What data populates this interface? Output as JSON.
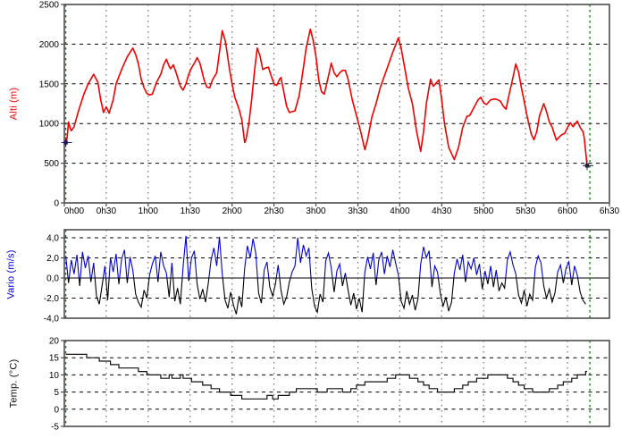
{
  "panel_background": "#ffffff",
  "colors": {
    "altitude_line": "#f20000",
    "vario_positive": "#0000cd",
    "vario_negative": "#000000",
    "temperature_line": "#111111",
    "event_line_green": "#008000",
    "plot_border": "#4d4d4d",
    "grid_horizontal": "#000000",
    "grid_vertical": "#6e6e6e",
    "tick_text": "#000000",
    "marker": "#1a1a6e"
  },
  "x_axis": {
    "labels": [
      "0h00",
      "0h30",
      "1h00",
      "1h30",
      "2h00",
      "2h30",
      "3h00",
      "3h30",
      "4h00",
      "4h30",
      "5h00",
      "5h30",
      "6h00",
      "6h30"
    ],
    "interval_min": 30
  },
  "events": {
    "event_lines_min": [
      1,
      376
    ],
    "meaning": [
      "takeoff",
      "landing"
    ]
  },
  "chart_data": [
    {
      "type": "line",
      "name": "altitude",
      "ylabel": "Alti (m)",
      "color": "#f20000",
      "ylim": [
        0,
        2500
      ],
      "yticks": [
        {
          "v": 2500,
          "label": "2500"
        },
        {
          "v": 2000,
          "label": "2000"
        },
        {
          "v": 1500,
          "label": "1500"
        },
        {
          "v": 1000,
          "label": "1000"
        },
        {
          "v": 500,
          "label": "500"
        },
        {
          "v": 0,
          "label": "0"
        }
      ],
      "x_unit": "minutes_since_takeoff",
      "points": [
        [
          0,
          760
        ],
        [
          1,
          820
        ],
        [
          2,
          1020
        ],
        [
          3,
          950
        ],
        [
          4,
          910
        ],
        [
          6,
          960
        ],
        [
          9,
          1150
        ],
        [
          13,
          1370
        ],
        [
          16,
          1500
        ],
        [
          20,
          1620
        ],
        [
          23,
          1520
        ],
        [
          25,
          1300
        ],
        [
          27,
          1140
        ],
        [
          29,
          1210
        ],
        [
          31,
          1130
        ],
        [
          34,
          1300
        ],
        [
          36,
          1500
        ],
        [
          40,
          1680
        ],
        [
          44,
          1840
        ],
        [
          48,
          1950
        ],
        [
          50,
          1870
        ],
        [
          52,
          1750
        ],
        [
          54,
          1560
        ],
        [
          56,
          1450
        ],
        [
          58,
          1380
        ],
        [
          60,
          1360
        ],
        [
          62,
          1370
        ],
        [
          65,
          1520
        ],
        [
          68,
          1620
        ],
        [
          70,
          1740
        ],
        [
          72,
          1810
        ],
        [
          74,
          1720
        ],
        [
          75,
          1690
        ],
        [
          77,
          1740
        ],
        [
          79,
          1640
        ],
        [
          82,
          1470
        ],
        [
          84,
          1420
        ],
        [
          86,
          1500
        ],
        [
          88,
          1620
        ],
        [
          90,
          1700
        ],
        [
          92,
          1760
        ],
        [
          94,
          1830
        ],
        [
          96,
          1760
        ],
        [
          97,
          1690
        ],
        [
          99,
          1550
        ],
        [
          101,
          1460
        ],
        [
          103,
          1450
        ],
        [
          105,
          1550
        ],
        [
          108,
          1640
        ],
        [
          110,
          1900
        ],
        [
          112,
          2170
        ],
        [
          114,
          2050
        ],
        [
          115,
          1950
        ],
        [
          117,
          1700
        ],
        [
          119,
          1500
        ],
        [
          121,
          1330
        ],
        [
          124,
          1180
        ],
        [
          126,
          1050
        ],
        [
          128,
          760
        ],
        [
          129,
          800
        ],
        [
          131,
          1000
        ],
        [
          133,
          1300
        ],
        [
          135,
          1650
        ],
        [
          137,
          1950
        ],
        [
          139,
          1850
        ],
        [
          141,
          1680
        ],
        [
          143,
          1700
        ],
        [
          145,
          1710
        ],
        [
          147,
          1600
        ],
        [
          149,
          1500
        ],
        [
          151,
          1480
        ],
        [
          153,
          1560
        ],
        [
          154,
          1580
        ],
        [
          156,
          1400
        ],
        [
          158,
          1220
        ],
        [
          160,
          1140
        ],
        [
          162,
          1150
        ],
        [
          164,
          1160
        ],
        [
          167,
          1350
        ],
        [
          170,
          1700
        ],
        [
          172,
          1950
        ],
        [
          175,
          2190
        ],
        [
          177,
          2050
        ],
        [
          179,
          1850
        ],
        [
          181,
          1550
        ],
        [
          183,
          1400
        ],
        [
          185,
          1370
        ],
        [
          188,
          1600
        ],
        [
          190,
          1760
        ],
        [
          192,
          1640
        ],
        [
          194,
          1590
        ],
        [
          196,
          1640
        ],
        [
          198,
          1670
        ],
        [
          200,
          1670
        ],
        [
          202,
          1560
        ],
        [
          205,
          1300
        ],
        [
          208,
          1100
        ],
        [
          211,
          900
        ],
        [
          214,
          670
        ],
        [
          216,
          800
        ],
        [
          219,
          1080
        ],
        [
          222,
          1250
        ],
        [
          225,
          1450
        ],
        [
          228,
          1600
        ],
        [
          231,
          1750
        ],
        [
          234,
          1900
        ],
        [
          238,
          2080
        ],
        [
          240,
          1950
        ],
        [
          242,
          1750
        ],
        [
          245,
          1450
        ],
        [
          248,
          1250
        ],
        [
          251,
          900
        ],
        [
          254,
          650
        ],
        [
          256,
          900
        ],
        [
          258,
          1250
        ],
        [
          261,
          1560
        ],
        [
          263,
          1470
        ],
        [
          265,
          1510
        ],
        [
          267,
          1550
        ],
        [
          269,
          1300
        ],
        [
          271,
          1000
        ],
        [
          274,
          700
        ],
        [
          278,
          545
        ],
        [
          281,
          700
        ],
        [
          284,
          950
        ],
        [
          287,
          1090
        ],
        [
          289,
          1100
        ],
        [
          292,
          1200
        ],
        [
          295,
          1300
        ],
        [
          297,
          1330
        ],
        [
          299,
          1260
        ],
        [
          301,
          1240
        ],
        [
          304,
          1300
        ],
        [
          307,
          1310
        ],
        [
          309,
          1300
        ],
        [
          311,
          1280
        ],
        [
          313,
          1220
        ],
        [
          315,
          1180
        ],
        [
          317,
          1350
        ],
        [
          319,
          1500
        ],
        [
          322,
          1750
        ],
        [
          324,
          1650
        ],
        [
          326,
          1450
        ],
        [
          328,
          1280
        ],
        [
          330,
          1100
        ],
        [
          333,
          870
        ],
        [
          335,
          795
        ],
        [
          337,
          900
        ],
        [
          339,
          1100
        ],
        [
          342,
          1250
        ],
        [
          344,
          1150
        ],
        [
          346,
          1020
        ],
        [
          348,
          955
        ],
        [
          351,
          790
        ],
        [
          353,
          830
        ],
        [
          355,
          860
        ],
        [
          357,
          875
        ],
        [
          359,
          950
        ],
        [
          361,
          1010
        ],
        [
          363,
          960
        ],
        [
          366,
          1030
        ],
        [
          368,
          950
        ],
        [
          370,
          900
        ],
        [
          371,
          820
        ],
        [
          373,
          470
        ]
      ],
      "start_marker": {
        "t": 0,
        "alt": 760
      },
      "end_marker": {
        "t": 373,
        "alt": 470
      }
    },
    {
      "type": "line",
      "name": "vario",
      "ylabel": "Vario (m/s)",
      "color_positive": "#0000cd",
      "color_negative": "#000000",
      "ylim": [
        -4,
        4.8
      ],
      "yticks": [
        {
          "v": 4,
          "label": "4,0"
        },
        {
          "v": 2,
          "label": "2,0"
        },
        {
          "v": 0,
          "label": "0,0"
        },
        {
          "v": -2,
          "label": "-2,0"
        },
        {
          "v": -4,
          "label": "-4,0"
        }
      ],
      "x_unit": "minutes_since_takeoff",
      "t_start": 0,
      "dt_min": 2,
      "values": [
        2.2,
        -0.5,
        1.8,
        0.4,
        2.3,
        -0.8,
        2.6,
        1.0,
        2.2,
        -0.4,
        1.5,
        -1.8,
        -2.6,
        -0.8,
        1.2,
        -2.2,
        2.0,
        0.6,
        2.4,
        -0.6,
        1.9,
        2.8,
        -0.5,
        2.1,
        0.8,
        -1.6,
        -2.4,
        -2.9,
        -1.2,
        -2.0,
        0.3,
        1.4,
        2.2,
        -0.4,
        2.6,
        1.2,
        0.5,
        -1.9,
        1.5,
        -2.3,
        -1.0,
        -2.6,
        1.1,
        4.2,
        -0.3,
        2.0,
        2.7,
        -0.6,
        -2.1,
        -1.1,
        -2.4,
        -0.5,
        1.8,
        3.0,
        1.2,
        4.1,
        0.4,
        -2.2,
        -3.0,
        -1.4,
        -2.7,
        -3.6,
        -1.8,
        -2.9,
        1.0,
        3.2,
        2.0,
        3.9,
        2.4,
        -1.5,
        -2.5,
        0.8,
        1.6,
        -0.9,
        -1.8,
        -0.6,
        1.3,
        -1.2,
        -2.6,
        -1.9,
        -0.4,
        0.6,
        1.2,
        4.0,
        1.5,
        3.3,
        2.2,
        3.0,
        -1.0,
        -2.8,
        -3.4,
        -1.6,
        -2.4,
        1.7,
        2.5,
        1.0,
        -1.4,
        0.7,
        1.4,
        -0.8,
        0.5,
        -1.2,
        -2.7,
        -1.5,
        -3.1,
        -2.0,
        -3.4,
        0.6,
        2.1,
        0.9,
        2.5,
        -0.7,
        1.8,
        2.6,
        0.4,
        2.2,
        1.1,
        2.8,
        1.5,
        0.3,
        -2.3,
        -3.0,
        -1.3,
        -2.6,
        -1.7,
        -3.2,
        -2.1,
        1.4,
        3.1,
        2.0,
        2.7,
        -0.9,
        1.2,
        0.6,
        -1.5,
        -2.8,
        -1.9,
        -3.3,
        -2.4,
        0.5,
        1.9,
        0.8,
        2.3,
        -0.4,
        1.6,
        0.9,
        2.0,
        0.3,
        1.4,
        -1.1,
        0.7,
        -0.6,
        1.2,
        -0.9,
        0.8,
        -1.3,
        -0.5,
        -1.0,
        1.8,
        2.6,
        1.3,
        0.4,
        -1.7,
        -2.5,
        -1.2,
        -2.8,
        -1.6,
        -2.2,
        1.1,
        2.2,
        1.5,
        -0.8,
        -2.0,
        -1.1,
        -2.4,
        -1.5,
        0.6,
        1.3,
        -0.5,
        1.0,
        1.6,
        -0.7,
        1.2,
        0.3,
        -1.4,
        -2.2,
        -2.6
      ]
    },
    {
      "type": "step",
      "name": "temperature",
      "ylabel": "Temp. (°C)",
      "color": "#111111",
      "ylim": [
        -5,
        20
      ],
      "yticks": [
        {
          "v": 20,
          "label": "20"
        },
        {
          "v": 15,
          "label": "15"
        },
        {
          "v": 10,
          "label": "10"
        },
        {
          "v": 5,
          "label": "5"
        },
        {
          "v": 0,
          "label": "0"
        },
        {
          "v": -5,
          "label": "-5"
        }
      ],
      "x_unit": "minutes_since_takeoff",
      "points": [
        [
          0,
          16
        ],
        [
          13,
          16
        ],
        [
          15,
          15
        ],
        [
          22,
          15
        ],
        [
          24,
          14
        ],
        [
          30,
          14
        ],
        [
          32,
          13
        ],
        [
          36,
          13
        ],
        [
          38,
          12
        ],
        [
          50,
          12
        ],
        [
          52,
          11
        ],
        [
          56,
          11
        ],
        [
          58,
          10
        ],
        [
          66,
          10
        ],
        [
          68,
          9
        ],
        [
          72,
          9
        ],
        [
          74,
          10
        ],
        [
          76,
          9
        ],
        [
          80,
          9
        ],
        [
          82,
          10
        ],
        [
          84,
          9
        ],
        [
          88,
          9
        ],
        [
          90,
          8
        ],
        [
          96,
          8
        ],
        [
          98,
          7
        ],
        [
          102,
          7
        ],
        [
          104,
          6
        ],
        [
          108,
          6
        ],
        [
          110,
          5
        ],
        [
          116,
          5
        ],
        [
          118,
          4
        ],
        [
          124,
          4
        ],
        [
          126,
          3
        ],
        [
          142,
          3
        ],
        [
          144,
          4
        ],
        [
          148,
          3
        ],
        [
          152,
          4
        ],
        [
          158,
          4
        ],
        [
          160,
          5
        ],
        [
          163,
          5
        ],
        [
          165,
          6
        ],
        [
          178,
          6
        ],
        [
          180,
          5
        ],
        [
          185,
          5
        ],
        [
          187,
          6
        ],
        [
          196,
          6
        ],
        [
          198,
          5
        ],
        [
          202,
          5
        ],
        [
          204,
          6
        ],
        [
          206,
          6
        ],
        [
          208,
          7
        ],
        [
          212,
          7
        ],
        [
          214,
          8
        ],
        [
          228,
          8
        ],
        [
          230,
          9
        ],
        [
          234,
          9
        ],
        [
          236,
          10
        ],
        [
          244,
          10
        ],
        [
          246,
          9
        ],
        [
          250,
          9
        ],
        [
          252,
          8
        ],
        [
          254,
          8
        ],
        [
          256,
          7
        ],
        [
          258,
          7
        ],
        [
          260,
          6
        ],
        [
          264,
          6
        ],
        [
          266,
          5
        ],
        [
          276,
          5
        ],
        [
          278,
          6
        ],
        [
          282,
          6
        ],
        [
          284,
          7
        ],
        [
          286,
          7
        ],
        [
          288,
          8
        ],
        [
          292,
          8
        ],
        [
          294,
          9
        ],
        [
          300,
          9
        ],
        [
          302,
          10
        ],
        [
          314,
          10
        ],
        [
          316,
          9
        ],
        [
          318,
          9
        ],
        [
          320,
          8
        ],
        [
          322,
          8
        ],
        [
          324,
          7
        ],
        [
          326,
          7
        ],
        [
          328,
          6
        ],
        [
          332,
          6
        ],
        [
          334,
          5
        ],
        [
          344,
          5
        ],
        [
          346,
          6
        ],
        [
          350,
          6
        ],
        [
          352,
          7
        ],
        [
          354,
          7
        ],
        [
          356,
          8
        ],
        [
          360,
          8
        ],
        [
          362,
          9
        ],
        [
          364,
          9
        ],
        [
          366,
          10
        ],
        [
          370,
          10
        ],
        [
          372,
          11
        ],
        [
          373,
          11
        ]
      ]
    }
  ]
}
